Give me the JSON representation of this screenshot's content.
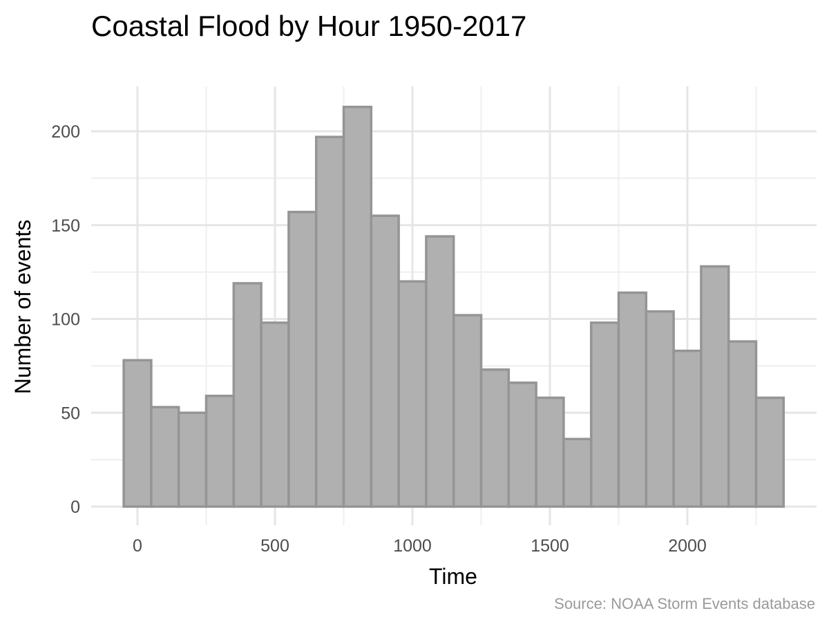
{
  "chart_data": {
    "type": "bar",
    "title": "Coastal Flood by Hour 1950-2017",
    "xlabel": "Time",
    "ylabel": "Number of events",
    "caption": "Source: NOAA Storm Events database",
    "xlim": [
      -50,
      2350
    ],
    "ylim": [
      0,
      213
    ],
    "x_ticks": [
      0,
      500,
      1000,
      1500,
      2000
    ],
    "x_tick_labels": [
      "0",
      "500",
      "1000",
      "1500",
      "2000"
    ],
    "y_ticks": [
      0,
      50,
      100,
      150,
      200
    ],
    "y_tick_labels": [
      "0",
      "50",
      "100",
      "150",
      "200"
    ],
    "grid": true,
    "legend": "none",
    "bin_width": 100,
    "bin_centers": [
      0,
      100,
      200,
      300,
      400,
      500,
      600,
      700,
      800,
      900,
      1000,
      1100,
      1200,
      1300,
      1400,
      1500,
      1600,
      1700,
      1800,
      1900,
      2000,
      2100,
      2200,
      2300
    ],
    "values": [
      78,
      53,
      50,
      59,
      119,
      98,
      157,
      197,
      213,
      155,
      120,
      144,
      102,
      73,
      66,
      58,
      36,
      98,
      114,
      104,
      83,
      128,
      88,
      58
    ],
    "colors": {
      "fill": "#b0b0b0",
      "outline": "#959595",
      "grid": "#e6e6e6"
    }
  }
}
